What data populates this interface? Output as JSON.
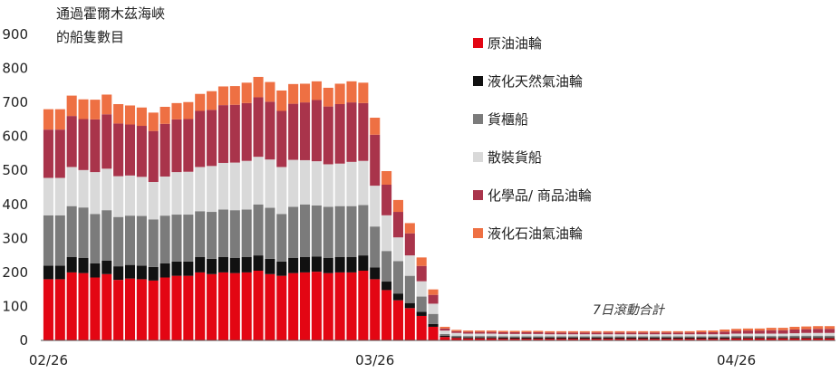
{
  "chart_data": {
    "type": "bar",
    "stacked": true,
    "title_lines": [
      "通過霍爾木茲海峽",
      "的船隻數目"
    ],
    "annotation": "7日滾動合計",
    "ylim": [
      0,
      900
    ],
    "yticks": [
      0,
      100,
      200,
      300,
      400,
      500,
      600,
      700,
      800,
      900
    ],
    "xtick_labels": [
      {
        "index": 0,
        "label": "02/26"
      },
      {
        "index": 28,
        "label": "03/26"
      },
      {
        "index": 59,
        "label": "04/26"
      }
    ],
    "grid": false,
    "legend_position": "right",
    "series": [
      {
        "name": "原油油輪",
        "color": "#e30613",
        "values": [
          180,
          180,
          200,
          198,
          185,
          195,
          178,
          182,
          180,
          176,
          185,
          190,
          190,
          200,
          195,
          200,
          198,
          200,
          205,
          195,
          190,
          198,
          200,
          202,
          198,
          200,
          200,
          205,
          180,
          148,
          118,
          95,
          72,
          40,
          10,
          7,
          6,
          6,
          6,
          5,
          5,
          5,
          5,
          5,
          5,
          5,
          5,
          5,
          5,
          5,
          5,
          5,
          5,
          5,
          5,
          5,
          5,
          5,
          5,
          6,
          6,
          6,
          6,
          6,
          6,
          6,
          6,
          6
        ]
      },
      {
        "name": "液化天然氣油輪",
        "color": "#111111",
        "values": [
          40,
          40,
          45,
          45,
          42,
          40,
          40,
          40,
          40,
          40,
          42,
          42,
          42,
          45,
          45,
          45,
          45,
          45,
          45,
          45,
          42,
          45,
          45,
          45,
          45,
          45,
          45,
          45,
          35,
          25,
          20,
          15,
          12,
          8,
          4,
          3,
          3,
          3,
          3,
          3,
          3,
          3,
          3,
          3,
          3,
          3,
          3,
          3,
          3,
          3,
          3,
          3,
          3,
          3,
          3,
          3,
          3,
          3,
          3,
          3,
          3,
          3,
          3,
          3,
          3,
          3,
          3,
          3
        ]
      },
      {
        "name": "貨櫃船",
        "color": "#7b7b7b",
        "values": [
          148,
          148,
          150,
          148,
          145,
          148,
          145,
          145,
          146,
          140,
          140,
          138,
          138,
          135,
          138,
          140,
          140,
          140,
          150,
          150,
          140,
          150,
          155,
          150,
          150,
          150,
          150,
          148,
          120,
          90,
          95,
          80,
          45,
          30,
          5,
          4,
          4,
          4,
          4,
          4,
          4,
          4,
          4,
          4,
          4,
          4,
          4,
          4,
          4,
          4,
          4,
          4,
          4,
          4,
          4,
          4,
          4,
          4,
          4,
          4,
          4,
          4,
          4,
          4,
          5,
          5,
          5,
          5
        ]
      },
      {
        "name": "散裝貨船",
        "color": "#d9d9d9",
        "values": [
          110,
          110,
          115,
          110,
          123,
          122,
          120,
          118,
          115,
          110,
          115,
          125,
          126,
          130,
          135,
          137,
          140,
          143,
          140,
          142,
          138,
          138,
          130,
          130,
          125,
          125,
          130,
          130,
          120,
          105,
          70,
          60,
          45,
          30,
          10,
          8,
          7,
          7,
          7,
          7,
          7,
          7,
          7,
          6,
          6,
          6,
          6,
          6,
          6,
          6,
          6,
          6,
          6,
          6,
          6,
          6,
          6,
          6,
          6,
          7,
          7,
          7,
          7,
          7,
          7,
          8,
          8,
          8
        ]
      },
      {
        "name": "化學品/ 商品油輪",
        "color": "#a9344b",
        "values": [
          142,
          142,
          150,
          150,
          155,
          160,
          155,
          150,
          150,
          150,
          155,
          155,
          155,
          165,
          165,
          170,
          170,
          170,
          175,
          170,
          165,
          165,
          170,
          180,
          170,
          175,
          175,
          170,
          150,
          90,
          75,
          65,
          45,
          26,
          6,
          5,
          5,
          5,
          5,
          5,
          5,
          5,
          5,
          5,
          5,
          5,
          5,
          5,
          5,
          5,
          5,
          5,
          5,
          5,
          5,
          5,
          6,
          6,
          8,
          8,
          9,
          9,
          10,
          10,
          11,
          11,
          12,
          12
        ]
      },
      {
        "name": "液化石油氣油輪",
        "color": "#ee7043",
        "values": [
          60,
          60,
          60,
          58,
          58,
          58,
          57,
          56,
          54,
          54,
          50,
          48,
          50,
          50,
          55,
          55,
          55,
          60,
          60,
          58,
          60,
          58,
          55,
          55,
          55,
          60,
          62,
          60,
          50,
          40,
          35,
          30,
          25,
          16,
          5,
          4,
          4,
          4,
          4,
          4,
          4,
          4,
          4,
          4,
          4,
          4,
          4,
          4,
          4,
          4,
          4,
          4,
          4,
          4,
          4,
          4,
          5,
          5,
          6,
          6,
          6,
          6,
          7,
          7,
          8,
          8,
          8,
          8
        ]
      }
    ]
  }
}
